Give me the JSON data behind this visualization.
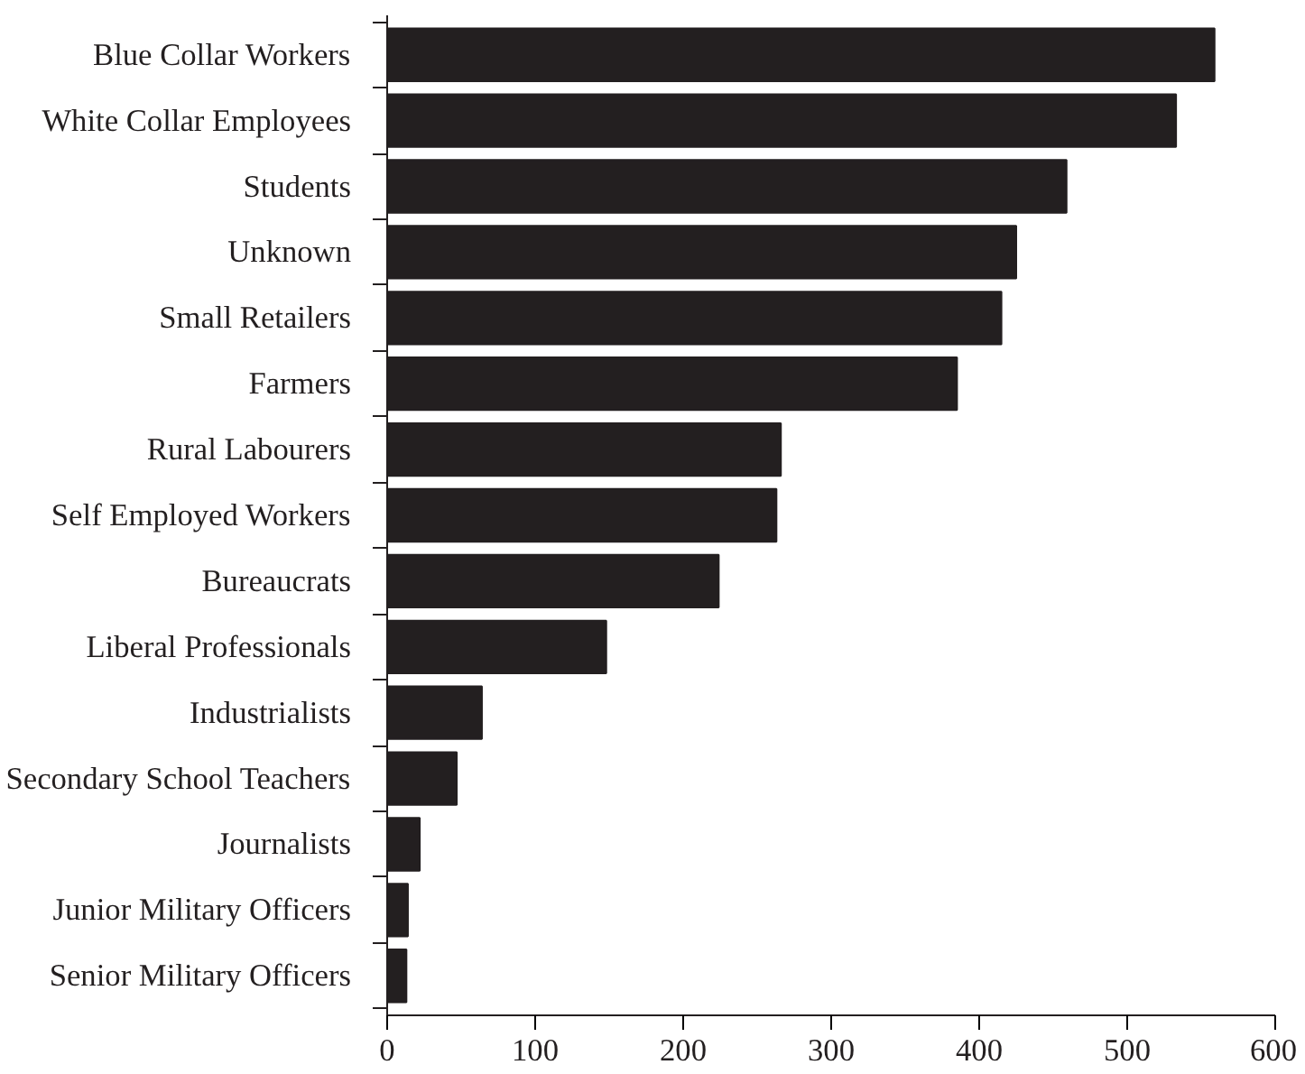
{
  "chart_data": {
    "type": "bar",
    "orientation": "horizontal",
    "categories": [
      "Blue Collar Workers",
      "White Collar Employees",
      "Students",
      "Unknown",
      "Small Retailers",
      "Farmers",
      "Rural Labourers",
      "Self Employed Workers",
      "Bureaucrats",
      "Liberal Professionals",
      "Industrialists",
      "Secondary School Teachers",
      "Journalists",
      "Junior Military Officers",
      "Senior Military Officers"
    ],
    "values": [
      559,
      533,
      459,
      425,
      415,
      385,
      266,
      263,
      224,
      148,
      64,
      47,
      22,
      14,
      13
    ],
    "color": "#231f20",
    "xlim": [
      0,
      600
    ],
    "xticks": [
      0,
      100,
      200,
      300,
      400,
      500,
      600
    ],
    "grid": false
  }
}
